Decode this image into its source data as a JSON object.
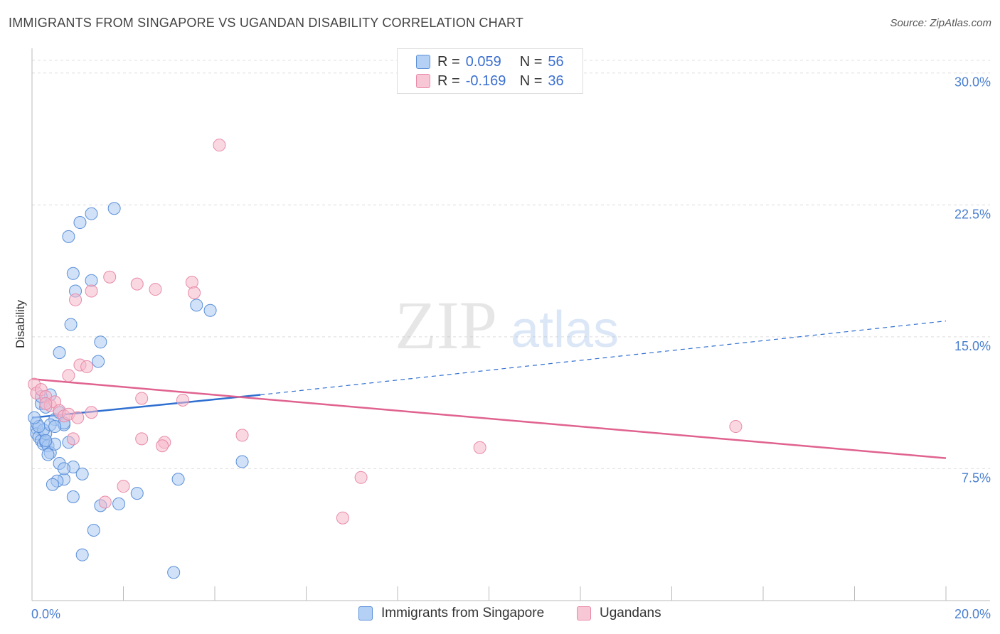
{
  "title": "IMMIGRANTS FROM SINGAPORE VS UGANDAN DISABILITY CORRELATION CHART",
  "source": "Source: ZipAtlas.com",
  "watermark": {
    "zip": "ZIP",
    "atlas": "atlas"
  },
  "legend_top": {
    "rows": [
      {
        "r_label": "R =",
        "r_value": "0.059",
        "n_label": "N =",
        "n_value": "56"
      },
      {
        "r_label": "R =",
        "r_value": "-0.169",
        "n_label": "N =",
        "n_value": "36"
      }
    ]
  },
  "colors": {
    "blue_fill": "#a9c8f2",
    "blue_stroke": "#5a8fd8",
    "blue_line": "#2f6fd0",
    "pink_fill": "#f5b8cb",
    "pink_stroke": "#e88aa8",
    "pink_line": "#e0628f",
    "grid": "#dddddd",
    "axis_text": "#4a7fd0"
  },
  "chart_data": {
    "type": "scatter",
    "title": "IMMIGRANTS FROM SINGAPORE VS UGANDAN DISABILITY CORRELATION CHART",
    "xlabel": "",
    "ylabel": "Disability",
    "xlim": [
      0,
      20
    ],
    "ylim": [
      0,
      31
    ],
    "x_tick_labels": [
      "0.0%",
      "20.0%"
    ],
    "y_ticks": [
      7.5,
      15.0,
      22.5,
      30.0
    ],
    "y_tick_labels": [
      "7.5%",
      "15.0%",
      "22.5%",
      "30.0%"
    ],
    "grid": true,
    "legend_position": "bottom",
    "series": [
      {
        "name": "Immigrants from Singapore",
        "r": 0.059,
        "n": 56,
        "trend": {
          "x0": 0,
          "y0": 10.4,
          "x1": 5.0,
          "y1": 11.7,
          "dashed_to_x": 20,
          "dashed_to_y": 15.9
        },
        "points": [
          [
            0.1,
            9.8
          ],
          [
            0.1,
            9.5
          ],
          [
            0.15,
            9.3
          ],
          [
            0.2,
            9.1
          ],
          [
            0.25,
            8.9
          ],
          [
            0.3,
            9.0
          ],
          [
            0.35,
            8.8
          ],
          [
            0.1,
            10.1
          ],
          [
            0.2,
            11.2
          ],
          [
            0.3,
            11.0
          ],
          [
            0.4,
            11.7
          ],
          [
            0.5,
            10.3
          ],
          [
            0.6,
            10.7
          ],
          [
            0.7,
            10.0
          ],
          [
            0.8,
            9.0
          ],
          [
            0.9,
            7.6
          ],
          [
            0.4,
            8.4
          ],
          [
            0.5,
            8.9
          ],
          [
            0.6,
            7.8
          ],
          [
            0.7,
            6.9
          ],
          [
            0.55,
            6.8
          ],
          [
            0.45,
            6.6
          ],
          [
            0.3,
            9.5
          ],
          [
            0.25,
            9.7
          ],
          [
            0.15,
            9.9
          ],
          [
            0.05,
            10.4
          ],
          [
            0.2,
            11.6
          ],
          [
            0.6,
            14.1
          ],
          [
            0.85,
            15.7
          ],
          [
            0.95,
            17.6
          ],
          [
            0.9,
            18.6
          ],
          [
            1.3,
            18.2
          ],
          [
            0.8,
            20.7
          ],
          [
            1.05,
            21.5
          ],
          [
            1.3,
            22.0
          ],
          [
            1.8,
            22.3
          ],
          [
            1.5,
            14.7
          ],
          [
            1.45,
            13.6
          ],
          [
            3.6,
            16.8
          ],
          [
            3.9,
            16.5
          ],
          [
            0.7,
            10.1
          ],
          [
            0.4,
            10.0
          ],
          [
            0.35,
            8.3
          ],
          [
            0.5,
            9.9
          ],
          [
            0.9,
            5.9
          ],
          [
            1.1,
            7.2
          ],
          [
            1.5,
            5.4
          ],
          [
            1.9,
            5.5
          ],
          [
            2.3,
            6.1
          ],
          [
            3.2,
            6.9
          ],
          [
            4.6,
            7.9
          ],
          [
            1.35,
            4.0
          ],
          [
            1.1,
            2.6
          ],
          [
            3.1,
            1.6
          ],
          [
            0.7,
            7.5
          ],
          [
            0.3,
            9.1
          ]
        ]
      },
      {
        "name": "Ugandans",
        "r": -0.169,
        "n": 36,
        "trend": {
          "x0": 0,
          "y0": 12.6,
          "x1": 20,
          "y1": 8.1
        },
        "points": [
          [
            0.05,
            12.3
          ],
          [
            0.1,
            11.8
          ],
          [
            0.2,
            12.0
          ],
          [
            0.3,
            11.6
          ],
          [
            0.4,
            11.1
          ],
          [
            0.5,
            11.3
          ],
          [
            0.6,
            10.8
          ],
          [
            0.7,
            10.5
          ],
          [
            0.8,
            10.6
          ],
          [
            0.9,
            9.2
          ],
          [
            1.0,
            10.4
          ],
          [
            1.3,
            10.7
          ],
          [
            0.8,
            12.8
          ],
          [
            1.05,
            13.4
          ],
          [
            1.2,
            13.3
          ],
          [
            0.95,
            17.1
          ],
          [
            1.3,
            17.6
          ],
          [
            1.7,
            18.4
          ],
          [
            2.3,
            18.0
          ],
          [
            2.7,
            17.7
          ],
          [
            3.5,
            18.1
          ],
          [
            3.55,
            17.5
          ],
          [
            4.1,
            25.9
          ],
          [
            2.4,
            11.5
          ],
          [
            3.3,
            11.4
          ],
          [
            2.4,
            9.2
          ],
          [
            2.9,
            9.0
          ],
          [
            2.85,
            8.8
          ],
          [
            4.6,
            9.4
          ],
          [
            2.0,
            6.5
          ],
          [
            1.6,
            5.6
          ],
          [
            7.2,
            7.0
          ],
          [
            6.8,
            4.7
          ],
          [
            9.8,
            8.7
          ],
          [
            15.4,
            9.9
          ],
          [
            0.3,
            11.2
          ]
        ]
      }
    ]
  }
}
